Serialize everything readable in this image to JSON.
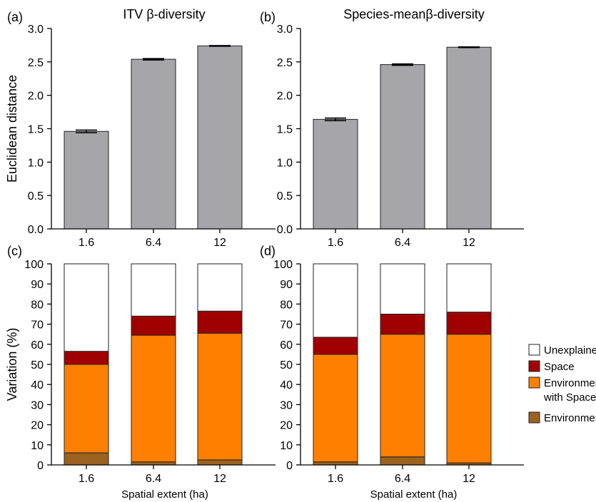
{
  "chart_data": [
    {
      "type": "bar",
      "panel": "(a)",
      "title": "ITV β-diversity",
      "ylabel": "Euclidean distance",
      "xlabel": "",
      "categories": [
        "1.6",
        "6.4",
        "12"
      ],
      "values": [
        1.46,
        2.54,
        2.74
      ],
      "errors": [
        0.02,
        0.01,
        0.005
      ],
      "ylim": [
        0,
        3.0
      ],
      "yticks": [
        "0.0",
        "0.5",
        "1.0",
        "1.5",
        "2.0",
        "2.5",
        "3.0"
      ],
      "bar_color": "#a5a5aa"
    },
    {
      "type": "bar",
      "panel": "(b)",
      "title": "Species-meanβ-diversity",
      "ylabel": "",
      "xlabel": "",
      "categories": [
        "1.6",
        "6.4",
        "12"
      ],
      "values": [
        1.64,
        2.46,
        2.72
      ],
      "errors": [
        0.02,
        0.01,
        0.005
      ],
      "ylim": [
        0,
        3.0
      ],
      "yticks": [
        "0.0",
        "0.5",
        "1.0",
        "1.5",
        "2.0",
        "2.5",
        "3.0"
      ],
      "bar_color": "#a5a5aa"
    },
    {
      "type": "bar",
      "stacked": true,
      "panel": "(c)",
      "title": "",
      "ylabel": "Variation (%)",
      "xlabel": "Spatial extent (ha)",
      "categories": [
        "1.6",
        "6.4",
        "12"
      ],
      "ylim": [
        0,
        100
      ],
      "yticks": [
        "0",
        "10",
        "20",
        "30",
        "40",
        "50",
        "60",
        "70",
        "80",
        "90",
        "100"
      ],
      "series": [
        {
          "name": "Environment",
          "values": [
            6,
            1.5,
            2.5
          ]
        },
        {
          "name": "Environment with Space",
          "values": [
            44,
            63,
            63
          ]
        },
        {
          "name": "Space",
          "values": [
            6.5,
            9.5,
            11
          ]
        },
        {
          "name": "Unexplained",
          "values": [
            43.5,
            26,
            23.5
          ]
        }
      ]
    },
    {
      "type": "bar",
      "stacked": true,
      "panel": "(d)",
      "title": "",
      "ylabel": "",
      "xlabel": "Spatial extent (ha)",
      "categories": [
        "1.6",
        "6.4",
        "12"
      ],
      "ylim": [
        0,
        100
      ],
      "yticks": [
        "0",
        "10",
        "20",
        "30",
        "40",
        "50",
        "60",
        "70",
        "80",
        "90",
        "100"
      ],
      "series": [
        {
          "name": "Environment",
          "values": [
            1.5,
            4,
            1
          ]
        },
        {
          "name": "Environment with Space",
          "values": [
            53.5,
            61,
            64
          ]
        },
        {
          "name": "Space",
          "values": [
            8.5,
            10,
            11
          ]
        },
        {
          "name": "Unexplained",
          "values": [
            36.5,
            25,
            24
          ]
        }
      ]
    }
  ],
  "legend": {
    "entries": [
      {
        "lines": [
          "Unexplained"
        ],
        "color": "#ffffff"
      },
      {
        "lines": [
          "Space"
        ],
        "color": "#a10000"
      },
      {
        "lines": [
          "Environment",
          "with Space"
        ],
        "color": "#ff8000"
      },
      {
        "lines": [
          "Environment"
        ],
        "color": "#9b6220"
      }
    ]
  },
  "colors": {
    "Environment": "#9b6220",
    "Environment with Space": "#ff8000",
    "Space": "#a10000",
    "Unexplained": "#ffffff",
    "bar": "#a5a5aa"
  }
}
